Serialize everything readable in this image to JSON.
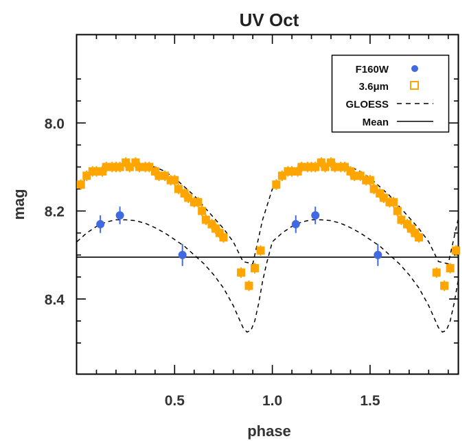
{
  "chart_data": {
    "type": "scatter",
    "title": "UV Oct",
    "xlabel": "phase",
    "ylabel": "mag",
    "xlim": [
      0.0,
      1.95
    ],
    "ylim": [
      8.57,
      7.8
    ],
    "y_inverted": true,
    "x_ticks": [
      "0.5",
      "1.0",
      "1.5"
    ],
    "y_ticks": [
      "8.0",
      "8.2",
      "8.4"
    ],
    "legend": {
      "position": "top-right",
      "entries": [
        {
          "label": "F160W",
          "marker": "filled-circle",
          "color": "#4169e1"
        },
        {
          "label": "3.6μm",
          "marker": "open-square",
          "color": "#ffa500"
        },
        {
          "label": "GLOESS",
          "marker": "dashed-line",
          "color": "#000000"
        },
        {
          "label": "Mean",
          "marker": "solid-line",
          "color": "#000000"
        }
      ]
    },
    "mean_mag": 8.305,
    "series": [
      {
        "name": "F160W",
        "color": "#4169e1",
        "x": [
          0.12,
          0.22,
          0.54,
          1.12,
          1.22,
          1.54
        ],
        "y": [
          8.23,
          8.21,
          8.3,
          8.23,
          8.21,
          8.3
        ],
        "yerr": [
          0.02,
          0.02,
          0.025,
          0.02,
          0.02,
          0.025
        ]
      },
      {
        "name": "3.6μm",
        "color": "#ffa500",
        "x": [
          0.02,
          0.05,
          0.08,
          0.1,
          0.13,
          0.15,
          0.18,
          0.2,
          0.22,
          0.25,
          0.27,
          0.3,
          0.32,
          0.35,
          0.37,
          0.4,
          0.42,
          0.45,
          0.48,
          0.5,
          0.52,
          0.55,
          0.57,
          0.6,
          0.62,
          0.64,
          0.66,
          0.69,
          0.71,
          0.73,
          0.75,
          0.84,
          0.88,
          0.91,
          0.94,
          1.02,
          1.05,
          1.08,
          1.1,
          1.13,
          1.15,
          1.18,
          1.2,
          1.22,
          1.25,
          1.27,
          1.3,
          1.32,
          1.35,
          1.37,
          1.4,
          1.42,
          1.45,
          1.48,
          1.5,
          1.52,
          1.55,
          1.57,
          1.6,
          1.62,
          1.64,
          1.66,
          1.69,
          1.71,
          1.73,
          1.75,
          1.84,
          1.88,
          1.91,
          1.94
        ],
        "y": [
          8.14,
          8.12,
          8.11,
          8.11,
          8.11,
          8.1,
          8.1,
          8.1,
          8.1,
          8.09,
          8.1,
          8.09,
          8.1,
          8.1,
          8.1,
          8.11,
          8.12,
          8.12,
          8.13,
          8.13,
          8.15,
          8.16,
          8.17,
          8.18,
          8.18,
          8.2,
          8.22,
          8.23,
          8.24,
          8.25,
          8.26,
          8.34,
          8.37,
          8.33,
          8.29,
          8.14,
          8.12,
          8.11,
          8.11,
          8.11,
          8.1,
          8.1,
          8.1,
          8.1,
          8.09,
          8.1,
          8.09,
          8.1,
          8.1,
          8.1,
          8.11,
          8.12,
          8.12,
          8.13,
          8.13,
          8.15,
          8.16,
          8.17,
          8.18,
          8.18,
          8.2,
          8.22,
          8.23,
          8.24,
          8.25,
          8.26,
          8.34,
          8.37,
          8.33,
          8.29
        ],
        "yerr": 0.012
      },
      {
        "name": "GLOESS",
        "style": "dashed",
        "x": [
          0.0,
          0.05,
          0.1,
          0.15,
          0.2,
          0.25,
          0.3,
          0.35,
          0.4,
          0.45,
          0.5,
          0.55,
          0.6,
          0.65,
          0.7,
          0.75,
          0.8,
          0.83,
          0.85,
          0.87,
          0.89,
          0.91,
          0.93,
          0.95,
          0.97,
          1.0,
          1.05,
          1.1,
          1.15,
          1.2,
          1.25,
          1.3,
          1.35,
          1.4,
          1.45,
          1.5,
          1.55,
          1.6,
          1.65,
          1.7,
          1.75,
          1.8,
          1.83,
          1.85,
          1.87,
          1.89,
          1.91,
          1.93,
          1.95
        ],
        "y": [
          8.27,
          8.25,
          8.235,
          8.225,
          8.22,
          8.22,
          8.222,
          8.228,
          8.238,
          8.25,
          8.265,
          8.28,
          8.3,
          8.32,
          8.345,
          8.375,
          8.415,
          8.445,
          8.465,
          8.475,
          8.472,
          8.45,
          8.41,
          8.36,
          8.32,
          8.27,
          8.25,
          8.235,
          8.225,
          8.22,
          8.22,
          8.222,
          8.228,
          8.238,
          8.25,
          8.265,
          8.28,
          8.3,
          8.32,
          8.345,
          8.375,
          8.415,
          8.445,
          8.465,
          8.475,
          8.472,
          8.45,
          8.41,
          8.36
        ]
      },
      {
        "name": "GLOESS",
        "style": "dashed",
        "x": [
          0.0,
          0.05,
          0.1,
          0.15,
          0.2,
          0.25,
          0.3,
          0.35,
          0.4,
          0.45,
          0.5,
          0.55,
          0.6,
          0.65,
          0.7,
          0.75,
          0.8,
          0.85,
          0.9,
          0.95,
          1.0,
          1.05,
          1.1,
          1.15,
          1.2,
          1.25,
          1.3,
          1.35,
          1.4,
          1.45,
          1.5,
          1.55,
          1.6,
          1.65,
          1.7,
          1.75,
          1.8,
          1.85,
          1.9,
          1.95
        ],
        "y": [
          8.15,
          8.125,
          8.11,
          8.105,
          8.1,
          8.097,
          8.095,
          8.097,
          8.1,
          8.11,
          8.125,
          8.145,
          8.165,
          8.19,
          8.215,
          8.24,
          8.27,
          8.315,
          8.32,
          8.22,
          8.15,
          8.125,
          8.11,
          8.105,
          8.1,
          8.097,
          8.095,
          8.097,
          8.1,
          8.11,
          8.125,
          8.145,
          8.165,
          8.19,
          8.215,
          8.24,
          8.27,
          8.315,
          8.32,
          8.22
        ]
      }
    ]
  }
}
